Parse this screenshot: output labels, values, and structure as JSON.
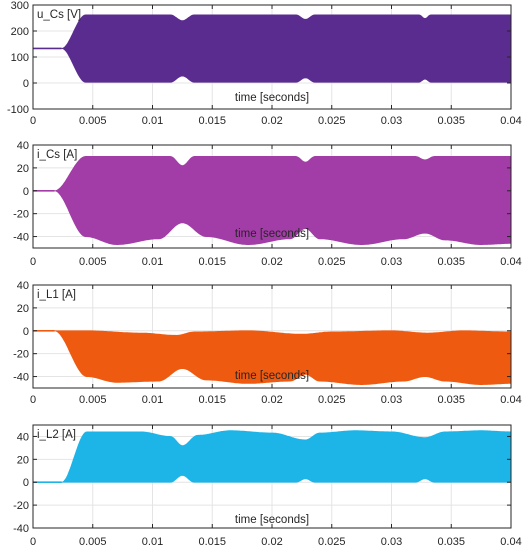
{
  "chart_data": [
    {
      "type": "area",
      "label": "u_Cs [V]",
      "xlabel": "time [seconds]",
      "xlim": [
        0,
        0.04
      ],
      "ylim": [
        -100,
        300
      ],
      "xticks": [
        "0",
        "0.005",
        "0.01",
        "0.015",
        "0.02",
        "0.025",
        "0.03",
        "0.035",
        "0.04"
      ],
      "yticks": [
        "300",
        "200",
        "100",
        "0",
        "-100"
      ],
      "grid": true,
      "color": "#5b2c8f",
      "initial_value": 133,
      "ramp_start": 0.0024,
      "ramp_end": 0.0044,
      "upper_envelope": [
        [
          0.0044,
          262
        ],
        [
          0.0115,
          262
        ],
        [
          0.0125,
          240
        ],
        [
          0.0135,
          262
        ],
        [
          0.022,
          262
        ],
        [
          0.0228,
          245
        ],
        [
          0.0236,
          262
        ],
        [
          0.0323,
          262
        ],
        [
          0.0328,
          248
        ],
        [
          0.0333,
          262
        ],
        [
          0.04,
          262
        ]
      ],
      "lower_envelope": [
        [
          0.0044,
          3
        ],
        [
          0.0115,
          3
        ],
        [
          0.0125,
          27
        ],
        [
          0.0135,
          3
        ],
        [
          0.022,
          3
        ],
        [
          0.0228,
          20
        ],
        [
          0.0236,
          3
        ],
        [
          0.0323,
          3
        ],
        [
          0.0328,
          15
        ],
        [
          0.0333,
          3
        ],
        [
          0.04,
          3
        ]
      ]
    },
    {
      "type": "area",
      "label": "i_Cs [A]",
      "xlabel": "time [seconds]",
      "xlim": [
        0,
        0.04
      ],
      "ylim": [
        -50,
        40
      ],
      "xticks": [
        "0",
        "0.005",
        "0.01",
        "0.015",
        "0.02",
        "0.025",
        "0.03",
        "0.035",
        "0.04"
      ],
      "yticks": [
        "40",
        "20",
        "0",
        "-20",
        "-40"
      ],
      "grid": true,
      "color": "#a23ca6",
      "initial_value": 0,
      "ramp_start": 0.0018,
      "ramp_end": 0.0044,
      "upper_envelope": [
        [
          0.0044,
          30
        ],
        [
          0.0115,
          30
        ],
        [
          0.0125,
          22
        ],
        [
          0.0135,
          30
        ],
        [
          0.022,
          30
        ],
        [
          0.0228,
          25
        ],
        [
          0.0236,
          30
        ],
        [
          0.032,
          30
        ],
        [
          0.0328,
          27
        ],
        [
          0.0336,
          30
        ],
        [
          0.04,
          30
        ]
      ],
      "lower_envelope": [
        [
          0.0044,
          -40
        ],
        [
          0.007,
          -47
        ],
        [
          0.0105,
          -42
        ],
        [
          0.0125,
          -28
        ],
        [
          0.0145,
          -40
        ],
        [
          0.018,
          -47
        ],
        [
          0.0215,
          -42
        ],
        [
          0.0228,
          -33
        ],
        [
          0.024,
          -42
        ],
        [
          0.0275,
          -47
        ],
        [
          0.031,
          -42
        ],
        [
          0.0328,
          -37
        ],
        [
          0.0345,
          -43
        ],
        [
          0.0375,
          -47
        ],
        [
          0.04,
          -46
        ]
      ]
    },
    {
      "type": "area",
      "label": "i_L1 [A]",
      "xlabel": "time [seconds]",
      "xlim": [
        0,
        0.04
      ],
      "ylim": [
        -50,
        40
      ],
      "xticks": [
        "0",
        "0.005",
        "0.01",
        "0.015",
        "0.02",
        "0.025",
        "0.03",
        "0.035",
        "0.04"
      ],
      "yticks": [
        "40",
        "20",
        "0",
        "-20",
        "-40"
      ],
      "grid": true,
      "color": "#ef5a11",
      "initial_value": 0,
      "ramp_start": 0.0018,
      "ramp_end": 0.0045,
      "upper_envelope": [
        [
          0.0045,
          0
        ],
        [
          0.009,
          -2
        ],
        [
          0.012,
          -4
        ],
        [
          0.0135,
          -1
        ],
        [
          0.018,
          0
        ],
        [
          0.0225,
          -3
        ],
        [
          0.025,
          -1
        ],
        [
          0.03,
          0
        ],
        [
          0.033,
          -2
        ],
        [
          0.036,
          0
        ],
        [
          0.04,
          -1
        ]
      ],
      "lower_envelope": [
        [
          0.0045,
          -40
        ],
        [
          0.007,
          -45
        ],
        [
          0.0105,
          -44
        ],
        [
          0.0125,
          -33
        ],
        [
          0.0145,
          -43
        ],
        [
          0.018,
          -46
        ],
        [
          0.0215,
          -44
        ],
        [
          0.0228,
          -38
        ],
        [
          0.024,
          -44
        ],
        [
          0.0275,
          -47
        ],
        [
          0.031,
          -44
        ],
        [
          0.0328,
          -40
        ],
        [
          0.0345,
          -44
        ],
        [
          0.0375,
          -47
        ],
        [
          0.04,
          -46
        ]
      ]
    },
    {
      "type": "area",
      "label": "i_L2 [A]",
      "xlabel": "time [seconds]",
      "xlim": [
        0,
        0.04
      ],
      "ylim": [
        -40,
        50
      ],
      "xticks": [
        "0",
        "0.005",
        "0.01",
        "0.015",
        "0.02",
        "0.025",
        "0.03",
        "0.035",
        "0.04"
      ],
      "yticks": [
        "40",
        "20",
        "0",
        "-20",
        "-40"
      ],
      "grid": true,
      "color": "#1db4e8",
      "initial_value": 0,
      "ramp_start": 0.0024,
      "ramp_end": 0.0045,
      "upper_envelope": [
        [
          0.0045,
          44
        ],
        [
          0.009,
          44
        ],
        [
          0.0115,
          40
        ],
        [
          0.0125,
          32
        ],
        [
          0.0138,
          41
        ],
        [
          0.0165,
          45
        ],
        [
          0.02,
          43
        ],
        [
          0.0228,
          37
        ],
        [
          0.024,
          43
        ],
        [
          0.027,
          45
        ],
        [
          0.03,
          44
        ],
        [
          0.0328,
          39
        ],
        [
          0.0345,
          44
        ],
        [
          0.0375,
          45
        ],
        [
          0.04,
          44
        ]
      ],
      "lower_envelope": [
        [
          0.0045,
          0
        ],
        [
          0.0115,
          0
        ],
        [
          0.0125,
          6
        ],
        [
          0.0135,
          0
        ],
        [
          0.022,
          0
        ],
        [
          0.0228,
          3
        ],
        [
          0.0236,
          0
        ],
        [
          0.032,
          0
        ],
        [
          0.0328,
          3
        ],
        [
          0.0336,
          0
        ],
        [
          0.04,
          0
        ]
      ]
    }
  ]
}
